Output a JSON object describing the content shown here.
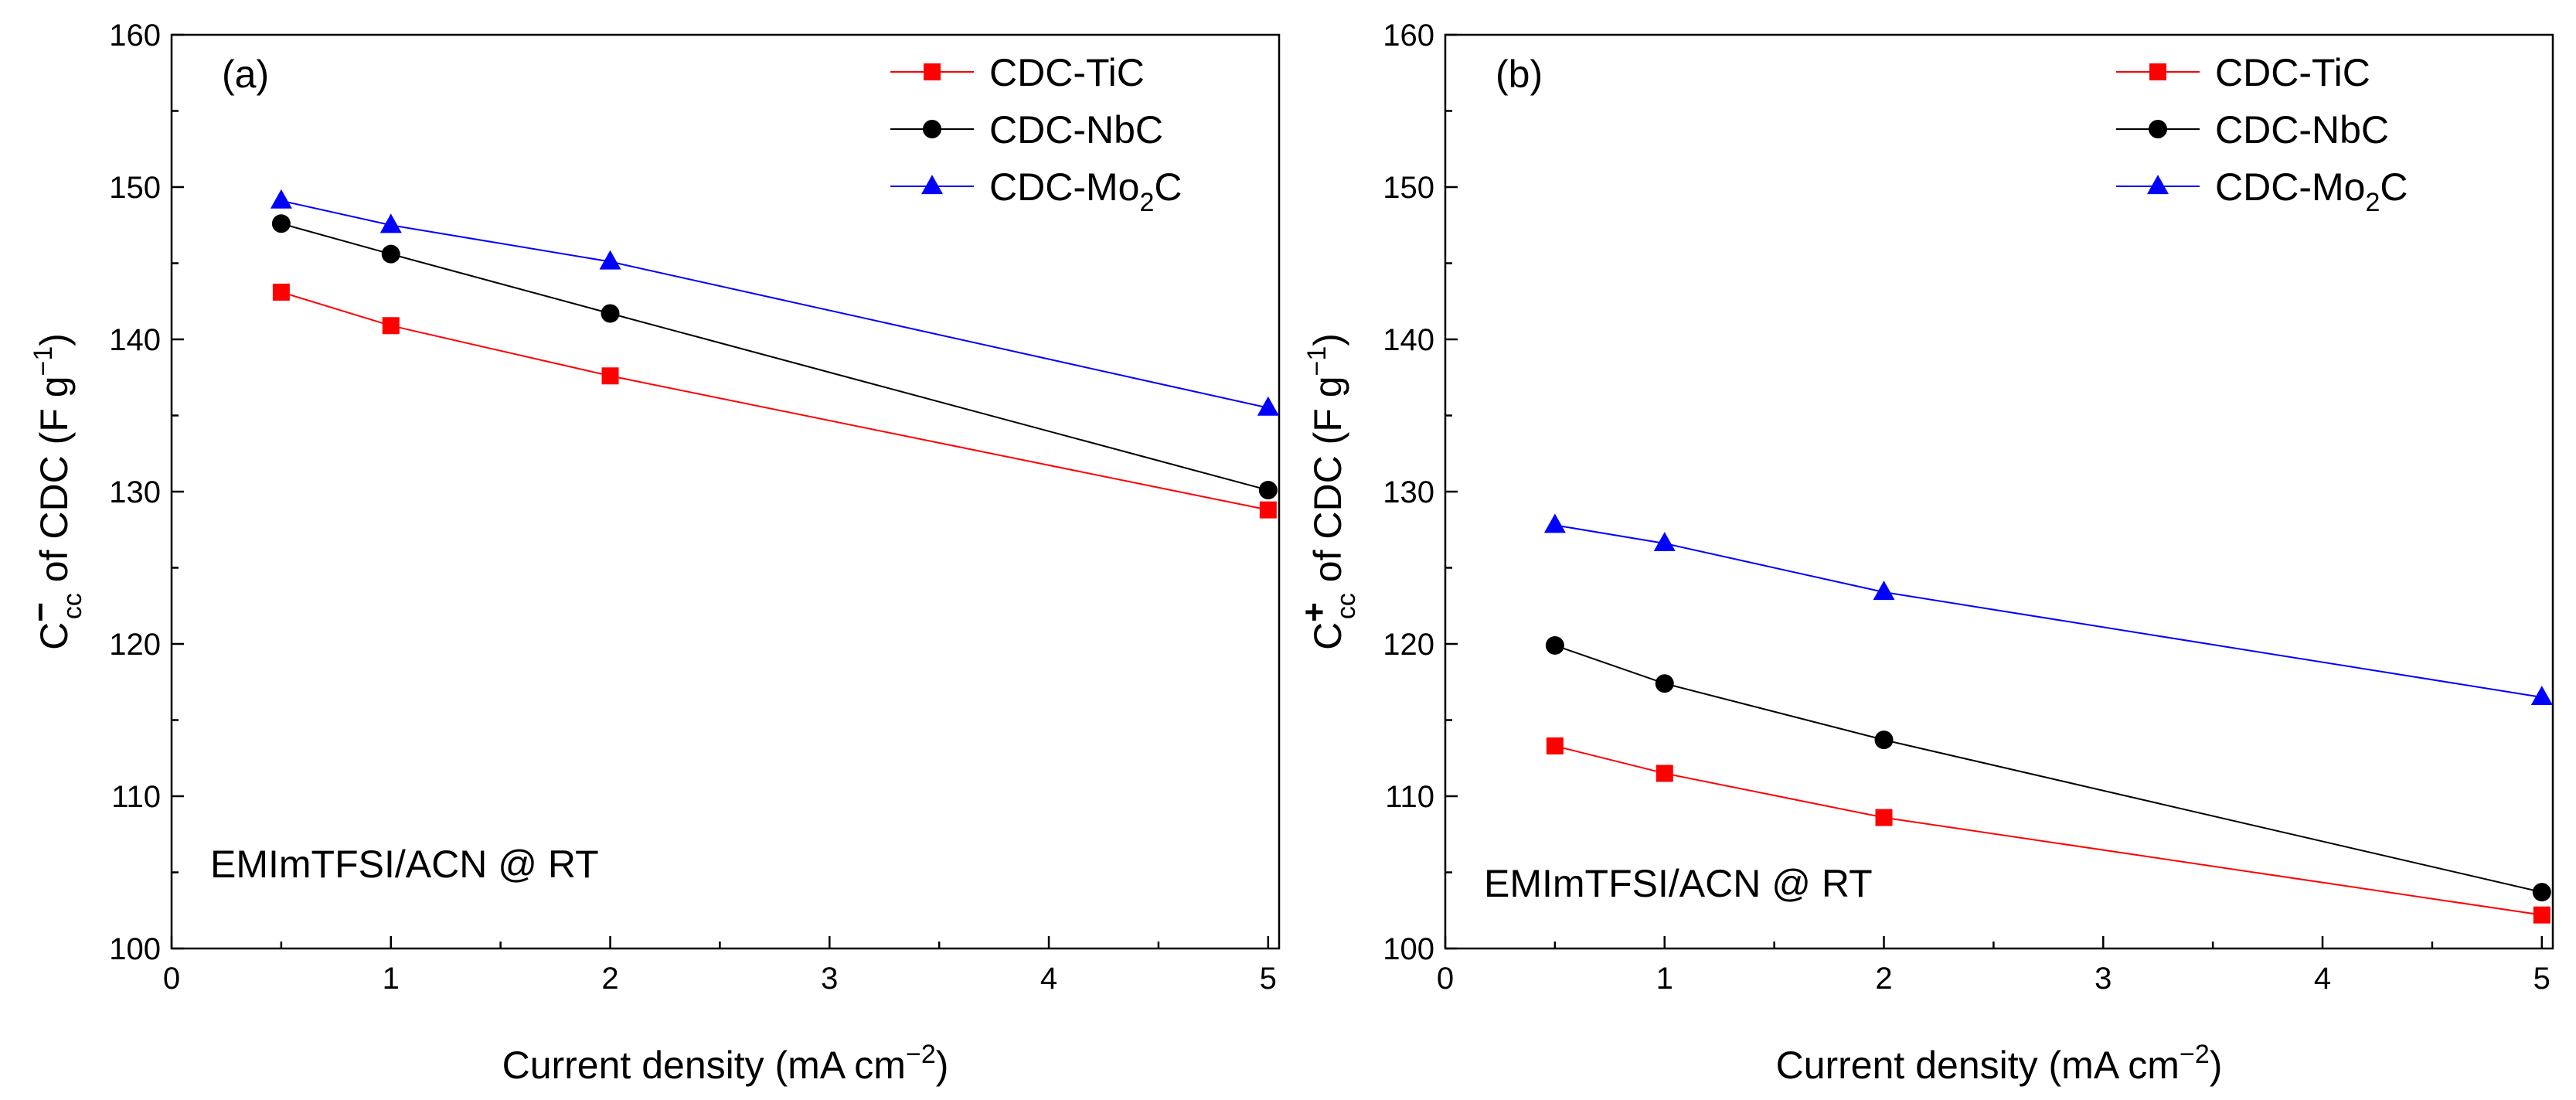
{
  "chart_data": [
    {
      "type": "line",
      "panel_label": "(a)",
      "annotation": "EMImTFSI/ACN @ RT",
      "xlabel": "Current density (mA cm",
      "xlabel_sup": "−2",
      "xlabel_end": ")",
      "ylabel_C": "C",
      "ylabel_sign": "−",
      "ylabel_sub": "cc",
      "ylabel_rest": " of CDC (F g",
      "ylabel_sup": "−1",
      "ylabel_end": ")",
      "xlim": [
        0,
        5.05
      ],
      "ylim": [
        100,
        160
      ],
      "xticks": [
        "0",
        "1",
        "2",
        "3",
        "4",
        "5"
      ],
      "xtick_values": [
        0,
        1,
        2,
        3,
        4,
        5
      ],
      "yticks": [
        "100",
        "110",
        "120",
        "130",
        "140",
        "150",
        "160"
      ],
      "ytick_values": [
        100,
        110,
        120,
        130,
        140,
        150,
        160
      ],
      "x": [
        0.5,
        1,
        2,
        5
      ],
      "legend_position": "top-right",
      "series": [
        {
          "name": "CDC-TiC",
          "label_main": "CDC-TiC",
          "label_sub": "",
          "label_tail": "",
          "color": "#ff0000",
          "marker": "square",
          "values": [
            143.1,
            140.9,
            137.6,
            128.8
          ]
        },
        {
          "name": "CDC-NbC",
          "label_main": "CDC-NbC",
          "label_sub": "",
          "label_tail": "",
          "color": "#000000",
          "marker": "circle",
          "values": [
            147.6,
            145.6,
            141.7,
            130.1
          ]
        },
        {
          "name": "CDC-Mo2C",
          "label_main": "CDC-Mo",
          "label_sub": "2",
          "label_tail": "C",
          "color": "#0000ff",
          "marker": "triangle",
          "values": [
            149.1,
            147.5,
            145.1,
            135.5
          ]
        }
      ]
    },
    {
      "type": "line",
      "panel_label": "(b)",
      "annotation": "EMImTFSI/ACN @ RT",
      "xlabel": "Current density (mA cm",
      "xlabel_sup": "−2",
      "xlabel_end": ")",
      "ylabel_C": "C",
      "ylabel_sign": "+",
      "ylabel_sub": "cc",
      "ylabel_rest": " of CDC (F g",
      "ylabel_sup": "−1",
      "ylabel_end": ")",
      "xlim": [
        0,
        5.05
      ],
      "ylim": [
        100,
        160
      ],
      "xticks": [
        "0",
        "1",
        "2",
        "3",
        "4",
        "5"
      ],
      "xtick_values": [
        0,
        1,
        2,
        3,
        4,
        5
      ],
      "yticks": [
        "100",
        "110",
        "120",
        "130",
        "140",
        "150",
        "160"
      ],
      "ytick_values": [
        100,
        110,
        120,
        130,
        140,
        150,
        160
      ],
      "x": [
        0.5,
        1,
        2,
        5
      ],
      "legend_position": "top-right",
      "series": [
        {
          "name": "CDC-TiC",
          "label_main": "CDC-TiC",
          "label_sub": "",
          "label_tail": "",
          "color": "#ff0000",
          "marker": "square",
          "values": [
            113.3,
            111.5,
            108.6,
            102.2
          ]
        },
        {
          "name": "CDC-NbC",
          "label_main": "CDC-NbC",
          "label_sub": "",
          "label_tail": "",
          "color": "#000000",
          "marker": "circle",
          "values": [
            119.9,
            117.4,
            113.7,
            103.7
          ]
        },
        {
          "name": "CDC-Mo2C",
          "label_main": "CDC-Mo",
          "label_sub": "2",
          "label_tail": "C",
          "color": "#0000ff",
          "marker": "triangle",
          "values": [
            127.8,
            126.6,
            123.4,
            116.5
          ]
        }
      ]
    }
  ]
}
